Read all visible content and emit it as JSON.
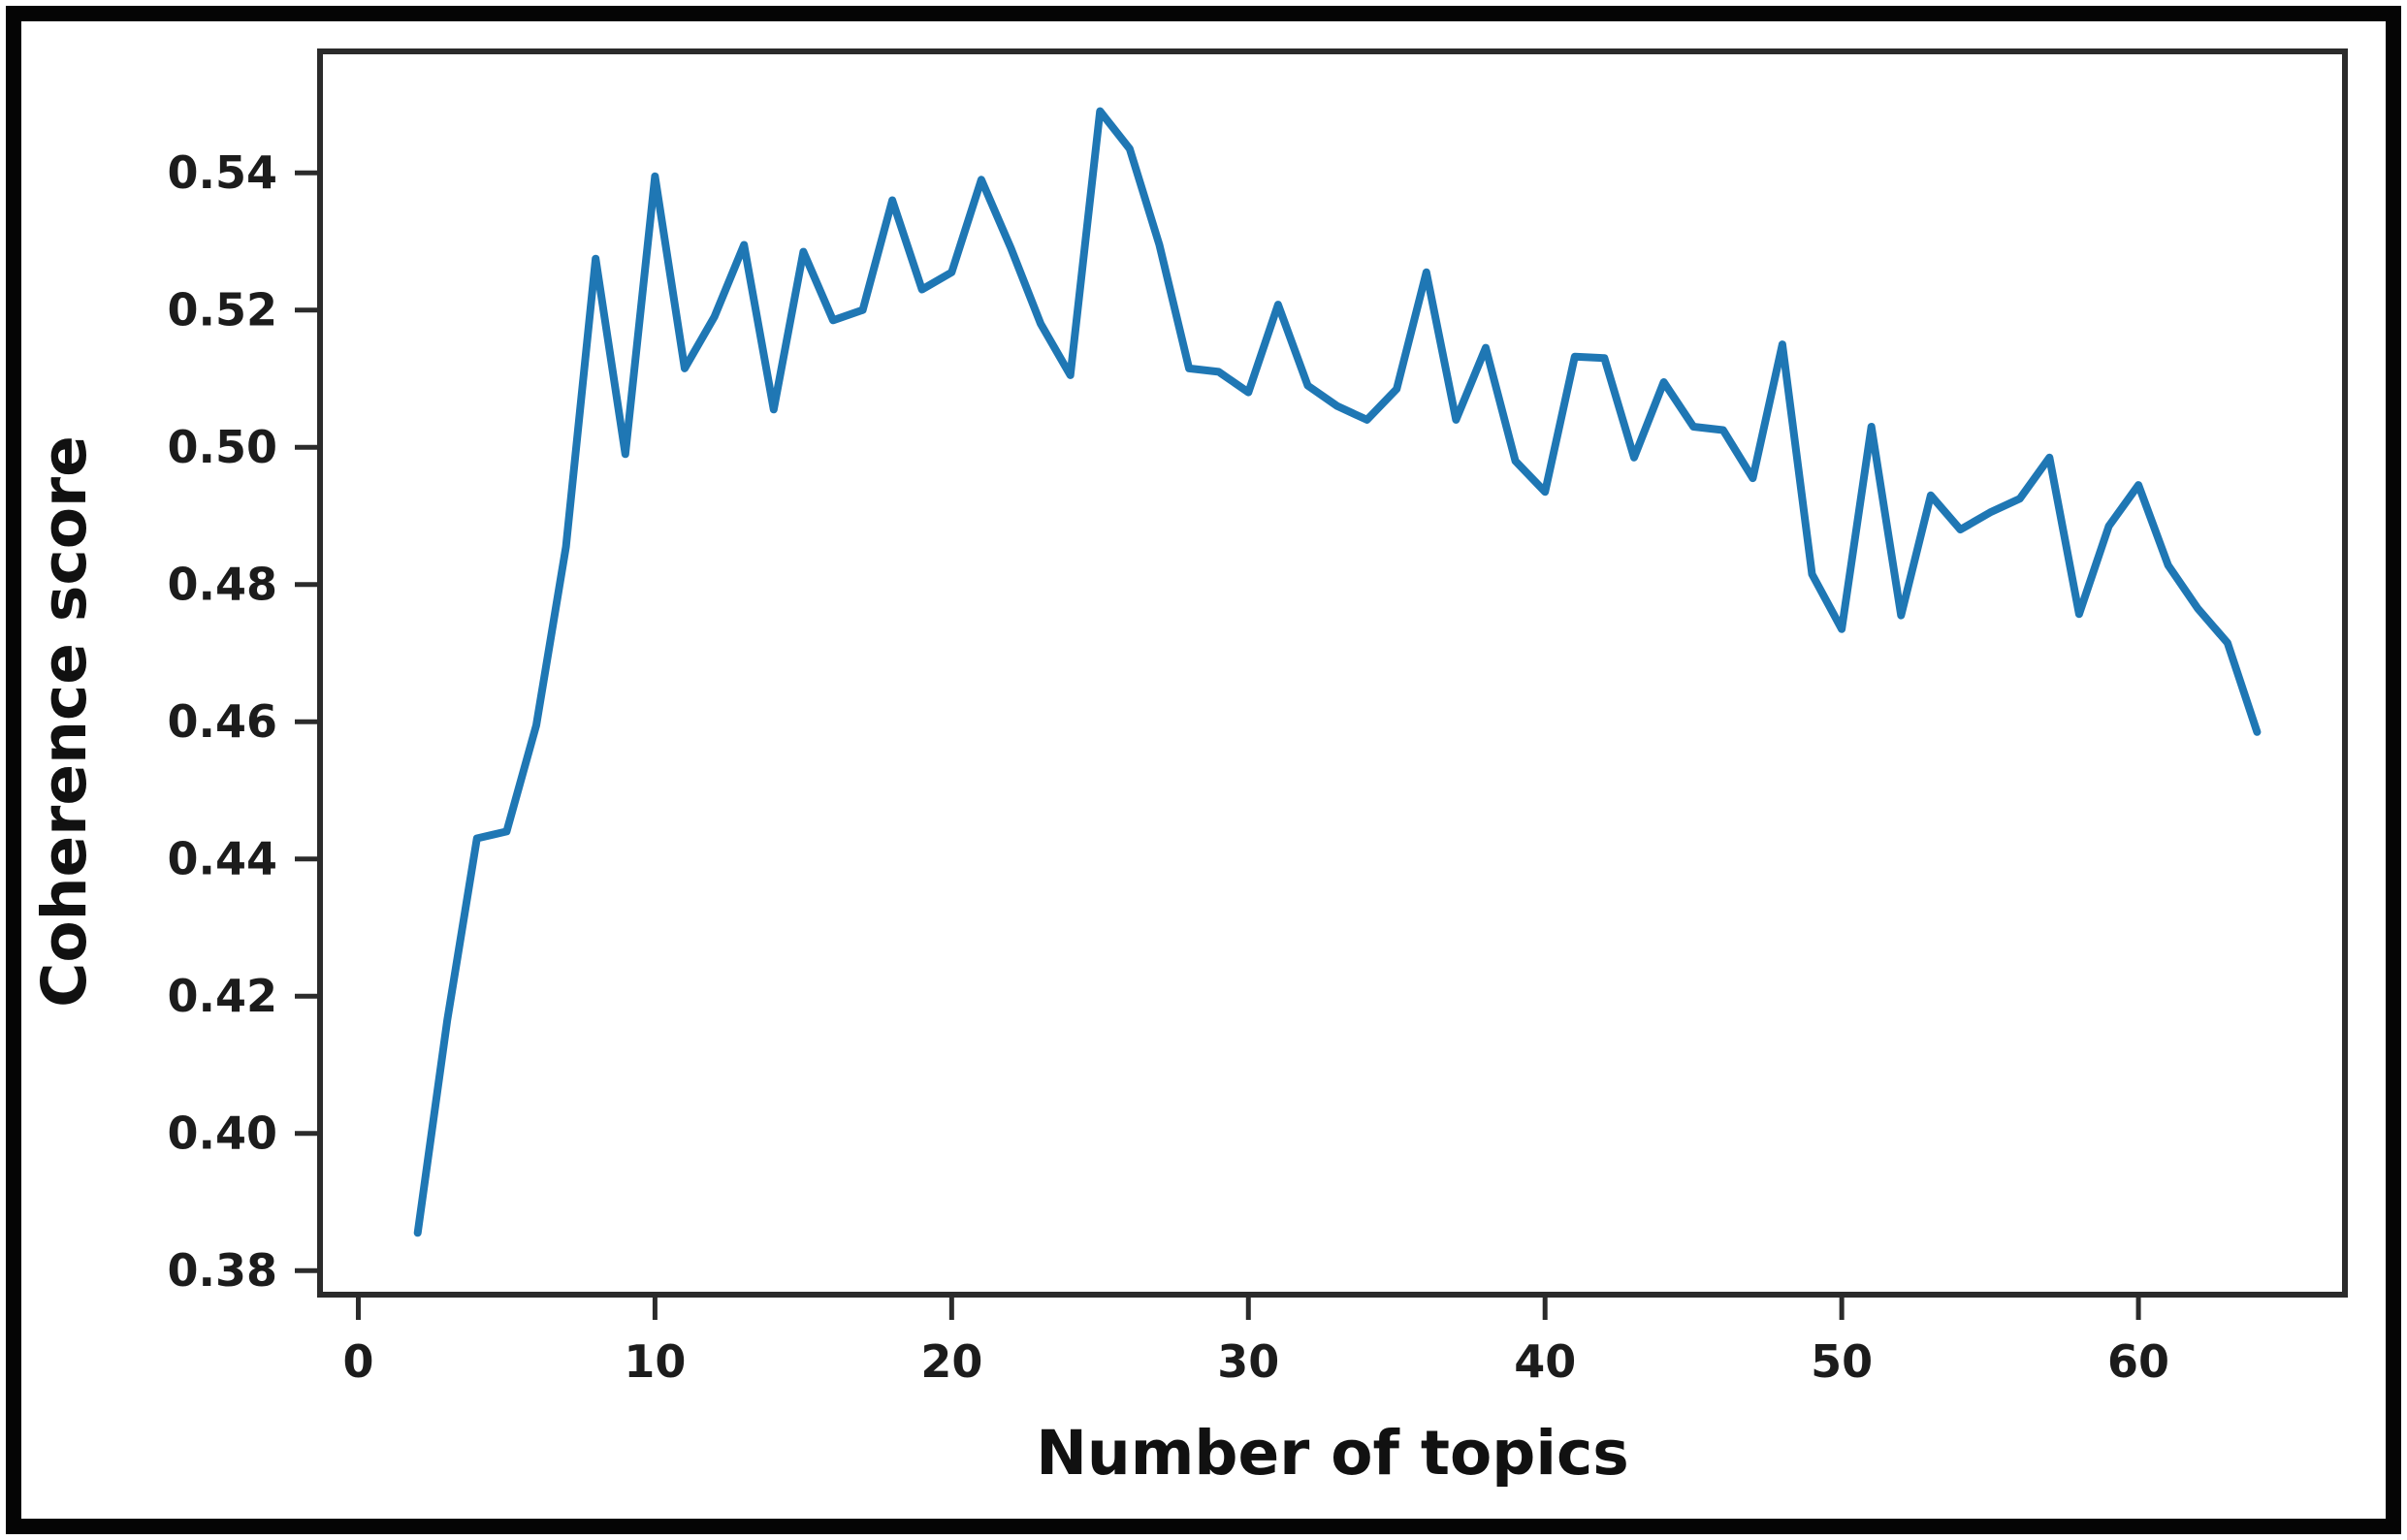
{
  "figure": {
    "kind": "matplotlib-line-figure",
    "background": "#ffffff",
    "border_color": "#050505"
  },
  "chart_data": {
    "type": "line",
    "title": "",
    "xlabel": "Number of topics",
    "ylabel": "Coherence score",
    "x": [
      2,
      3,
      4,
      5,
      6,
      7,
      8,
      9,
      10,
      11,
      12,
      13,
      14,
      15,
      16,
      17,
      18,
      19,
      20,
      21,
      22,
      23,
      24,
      25,
      26,
      27,
      28,
      29,
      30,
      31,
      32,
      33,
      34,
      35,
      36,
      37,
      38,
      39,
      40,
      41,
      42,
      43,
      44,
      45,
      46,
      47,
      48,
      49,
      50,
      51,
      52,
      53,
      54,
      55,
      56,
      57,
      58,
      59,
      60,
      61,
      62,
      63,
      64
    ],
    "values": [
      0.3855,
      0.4165,
      0.443,
      0.444,
      0.4595,
      0.4855,
      0.5275,
      0.499,
      0.5395,
      0.5115,
      0.519,
      0.5295,
      0.5055,
      0.5285,
      0.5185,
      0.52,
      0.536,
      0.523,
      0.5255,
      0.539,
      0.529,
      0.518,
      0.5105,
      0.549,
      0.5435,
      0.5295,
      0.5115,
      0.511,
      0.508,
      0.5208,
      0.509,
      0.506,
      0.504,
      0.5085,
      0.5255,
      0.504,
      0.5145,
      0.498,
      0.4935,
      0.5132,
      0.513,
      0.4985,
      0.5095,
      0.503,
      0.5025,
      0.4955,
      0.515,
      0.4815,
      0.4735,
      0.503,
      0.4755,
      0.493,
      0.488,
      0.4905,
      0.4925,
      0.4985,
      0.4757,
      0.4885,
      0.4945,
      0.4828,
      0.4765,
      0.4715,
      0.4585
    ],
    "xticks": [
      {
        "value": 0,
        "label": "0"
      },
      {
        "value": 10,
        "label": "10"
      },
      {
        "value": 20,
        "label": "20"
      },
      {
        "value": 30,
        "label": "30"
      },
      {
        "value": 40,
        "label": "40"
      },
      {
        "value": 50,
        "label": "50"
      },
      {
        "value": 60,
        "label": "60"
      }
    ],
    "yticks": [
      {
        "value": 0.38,
        "label": "0.38"
      },
      {
        "value": 0.4,
        "label": "0.40"
      },
      {
        "value": 0.42,
        "label": "0.42"
      },
      {
        "value": 0.44,
        "label": "0.44"
      },
      {
        "value": 0.46,
        "label": "0.46"
      },
      {
        "value": 0.48,
        "label": "0.48"
      },
      {
        "value": 0.5,
        "label": "0.50"
      },
      {
        "value": 0.52,
        "label": "0.52"
      },
      {
        "value": 0.54,
        "label": "0.54"
      }
    ],
    "xlim": [
      -1.29,
      66.96
    ],
    "ylim": [
      0.3765,
      0.5577
    ],
    "grid": false,
    "legend": null,
    "line_color": "#1f77b4",
    "line_width": 8,
    "axis_color": "#2b2b2b"
  }
}
